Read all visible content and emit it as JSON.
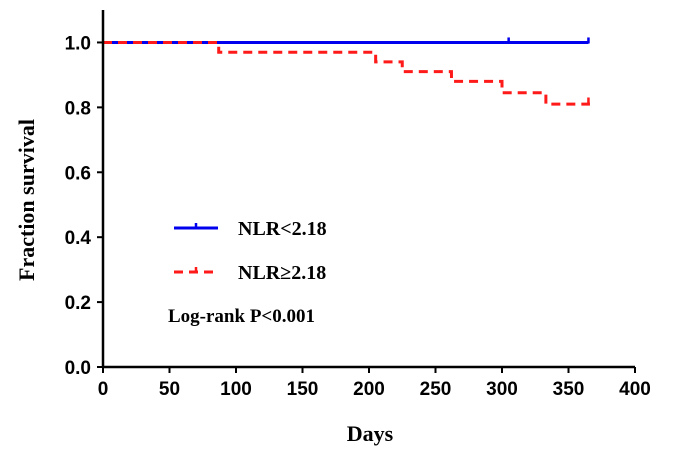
{
  "chart_data": {
    "type": "line",
    "title": "",
    "xlabel": "Days",
    "ylabel": "Fraction survival",
    "xlim": [
      0,
      400
    ],
    "ylim": [
      0,
      1.1
    ],
    "xticks": [
      "0",
      "50",
      "100",
      "150",
      "200",
      "250",
      "300",
      "350",
      "400"
    ],
    "yticks": [
      "0.0",
      "0.2",
      "0.4",
      "0.6",
      "0.8",
      "1.0"
    ],
    "grid": false,
    "legend_position": "middle-left",
    "annotation": "Log-rank P<0.001",
    "series": [
      {
        "name": "NLR<2.18",
        "color": "#0000ee",
        "style": "solid",
        "x": [
          0,
          365
        ],
        "y": [
          1.0,
          1.0
        ],
        "censor_marks": [
          305,
          365
        ]
      },
      {
        "name": "NLR≥2.18",
        "color": "#ff1a1a",
        "style": "dashed",
        "x": [
          0,
          87,
          195,
          205,
          225,
          262,
          300,
          333,
          365
        ],
        "y": [
          1.0,
          0.97,
          0.97,
          0.94,
          0.91,
          0.88,
          0.845,
          0.81,
          0.815
        ],
        "censor_marks": [
          365
        ]
      }
    ]
  }
}
